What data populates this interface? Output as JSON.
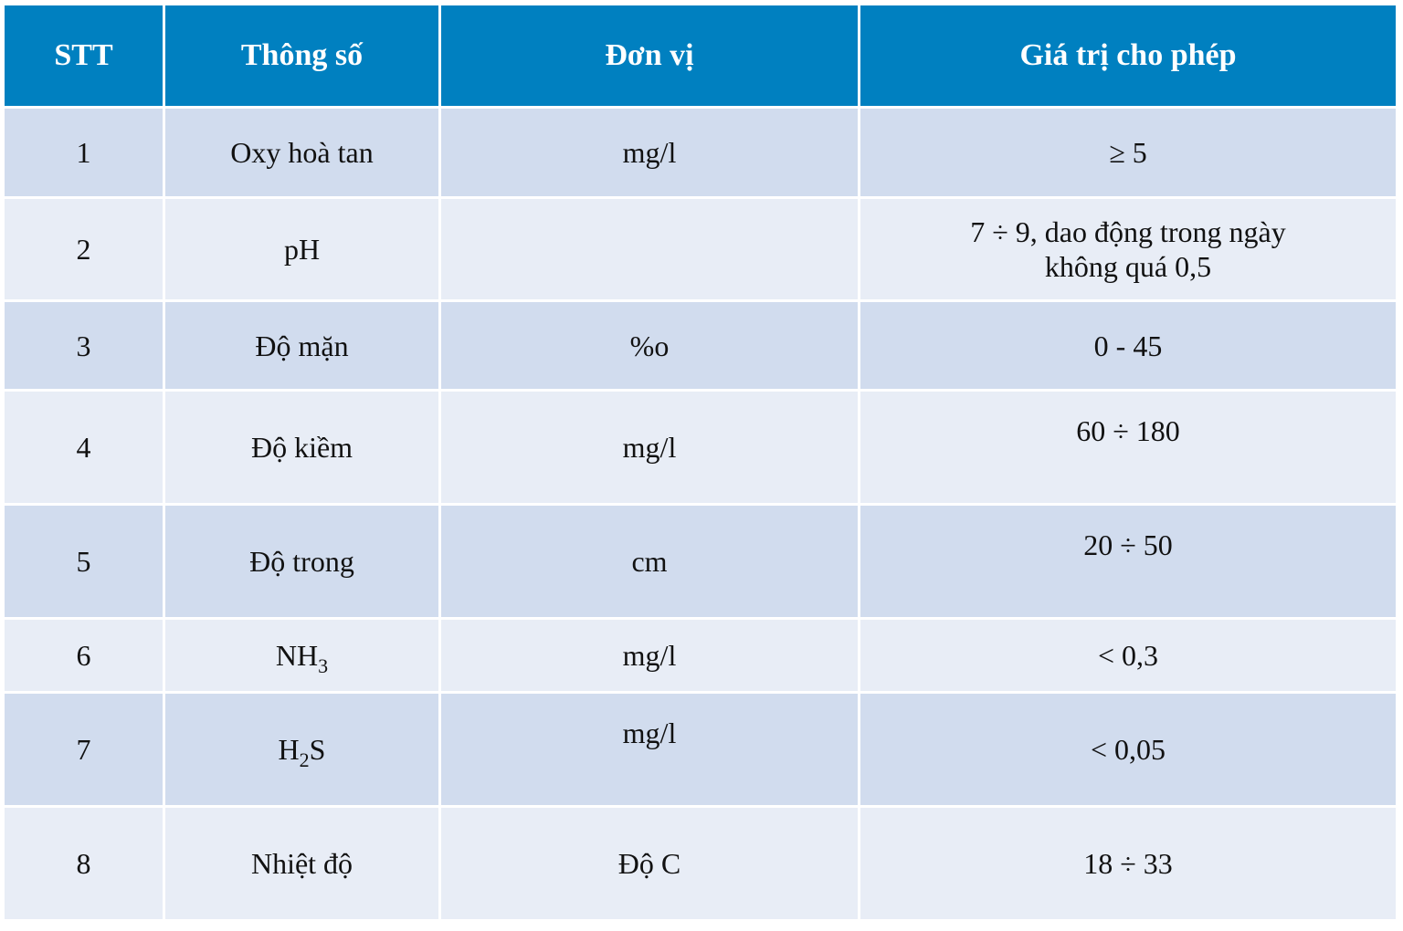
{
  "header": {
    "col1": "STT",
    "col2": "Thông số",
    "col3": "Đơn vị",
    "col4": "Giá trị cho phép"
  },
  "rows": [
    {
      "stt": "1",
      "param": "Oxy hoà tan",
      "unit": "mg/l",
      "value": "≥ 5"
    },
    {
      "stt": "2",
      "param": "pH",
      "unit": "",
      "value_line1": "7 ÷ 9, dao động trong ngày",
      "value_line2": "không quá 0,5"
    },
    {
      "stt": "3",
      "param": "Độ mặn",
      "unit": "%o",
      "value": "0 - 45"
    },
    {
      "stt": "4",
      "param": "Độ kiềm",
      "unit": "mg/l",
      "value": "60 ÷ 180"
    },
    {
      "stt": "5",
      "param": "Độ trong",
      "unit": "cm",
      "value": "20 ÷ 50"
    },
    {
      "stt": "6",
      "param_main": "NH",
      "param_sub": "3",
      "unit": "mg/l",
      "value": "< 0,3"
    },
    {
      "stt": "7",
      "param_pre": "H",
      "param_sub": "2",
      "param_post": "S",
      "unit": "mg/l",
      "value": "< 0,05"
    },
    {
      "stt": "8",
      "param": "Nhiệt độ",
      "unit": "Độ C",
      "value": "18 ÷ 33"
    }
  ],
  "colors": {
    "header_bg": "#0080c0",
    "row_dark": "#d1dcee",
    "row_light": "#e8edf6"
  }
}
